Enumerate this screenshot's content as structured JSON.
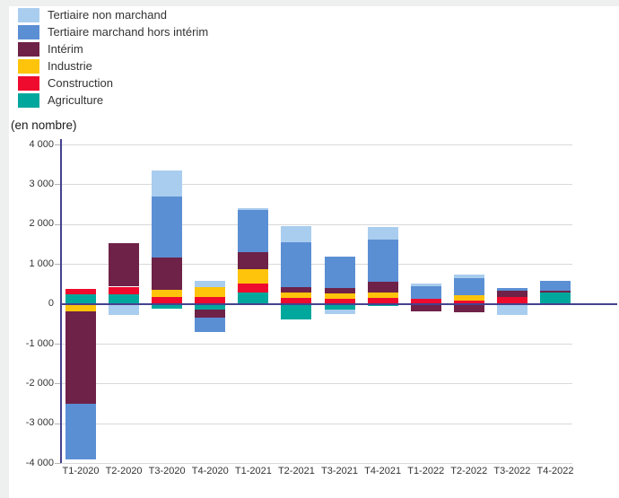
{
  "colors": {
    "axis": "#45418f",
    "grid": "#d9d9d9",
    "tick": "#b5b5b5",
    "card_background": "#ffffff",
    "page_background": "#eef0f0",
    "text": "#333333"
  },
  "chart_data": {
    "type": "bar",
    "stacked": true,
    "title": "",
    "ylabel": "(en nombre)",
    "xlabel": "",
    "ylim": [
      -4000,
      4000
    ],
    "ytick_step": 1000,
    "ytick_labels": [
      "4 000",
      "3 000",
      "2 000",
      "1 000",
      "0",
      "-1 000",
      "-2 000",
      "-3 000",
      "-4 000"
    ],
    "grid": true,
    "legend_position": "top-left",
    "legend": [
      "Tertiaire non marchand",
      "Tertiaire marchand hors intérim",
      "Intérim",
      "Industrie",
      "Construction",
      "Agriculture"
    ],
    "categories": [
      "T1-2020",
      "T2-2020",
      "T3-2020",
      "T4-2020",
      "T1-2021",
      "T2-2021",
      "T3-2021",
      "T4-2021",
      "T1-2022",
      "T2-2022",
      "T3-2022",
      "T4-2022"
    ],
    "series": [
      {
        "name": "Agriculture",
        "color": "#00a79d",
        "values": [
          240,
          240,
          -130,
          -150,
          280,
          -400,
          -135,
          -50,
          0,
          0,
          0,
          280
        ]
      },
      {
        "name": "Construction",
        "color": "#ee0b2e",
        "values": [
          130,
          190,
          170,
          165,
          220,
          150,
          130,
          150,
          130,
          90,
          180,
          0
        ]
      },
      {
        "name": "Industrie",
        "color": "#fdc40b",
        "values": [
          -190,
          0,
          175,
          265,
          360,
          125,
          125,
          125,
          0,
          115,
          0,
          0
        ]
      },
      {
        "name": "Intérim",
        "color": "#6e2248",
        "values": [
          -2330,
          1100,
          810,
          -190,
          430,
          150,
          135,
          280,
          -180,
          -210,
          150,
          40
        ]
      },
      {
        "name": "Tertiaire marchand hors intérim",
        "color": "#5b8fd4",
        "values": [
          -1390,
          0,
          1540,
          -360,
          1070,
          1120,
          790,
          1050,
          320,
          430,
          60,
          260
        ]
      },
      {
        "name": "Tertiaire non marchand",
        "color": "#a9cdee",
        "values": [
          0,
          -290,
          660,
          150,
          50,
          400,
          -120,
          320,
          70,
          100,
          -290,
          0
        ]
      }
    ]
  }
}
